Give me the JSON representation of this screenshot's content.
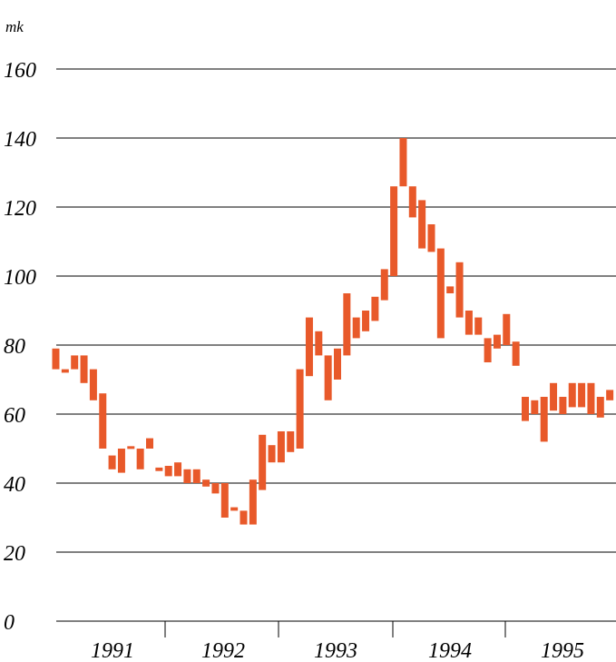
{
  "chart_data": {
    "type": "bar",
    "subtype": "floating-range",
    "unit_label": "mk",
    "ylim": [
      0,
      160
    ],
    "yticks": [
      0,
      20,
      40,
      60,
      80,
      100,
      120,
      140,
      160
    ],
    "x_periods": [
      "1991",
      "1992",
      "1993",
      "1994",
      "1995"
    ],
    "grid": "horizontal",
    "colors": {
      "bar": "#e8592a",
      "grid": "#000000",
      "text": "#000000"
    },
    "series": [
      {
        "ranges": [
          [
            73,
            79
          ],
          [
            72,
            73
          ],
          [
            73,
            77
          ],
          [
            69,
            77
          ],
          [
            64,
            73
          ],
          [
            50,
            66
          ],
          [
            44,
            48
          ],
          [
            43,
            50
          ],
          [
            50,
            50.6
          ],
          [
            44,
            50
          ],
          [
            50,
            53
          ],
          [
            43.5,
            44.5
          ],
          [
            42,
            45
          ],
          [
            42,
            46
          ],
          [
            40,
            44
          ],
          [
            40,
            44
          ],
          [
            39,
            41
          ],
          [
            37,
            40
          ],
          [
            30,
            40
          ],
          [
            32,
            33
          ],
          [
            28,
            32
          ],
          [
            28,
            41
          ],
          [
            38,
            54
          ],
          [
            46,
            51
          ],
          [
            46,
            55
          ],
          [
            49,
            55
          ],
          [
            50,
            73
          ],
          [
            71,
            88
          ],
          [
            77,
            84
          ],
          [
            64,
            77
          ],
          [
            70,
            79
          ],
          [
            77,
            95
          ],
          [
            82,
            88
          ],
          [
            84,
            90
          ],
          [
            87,
            94
          ],
          [
            93,
            102
          ],
          [
            100,
            126
          ],
          [
            126,
            140
          ],
          [
            117,
            126
          ],
          [
            108,
            122
          ],
          [
            107,
            115
          ],
          [
            82,
            108
          ],
          [
            95,
            97
          ],
          [
            88,
            104
          ],
          [
            83,
            90
          ],
          [
            83,
            88
          ],
          [
            75,
            82
          ],
          [
            79,
            83
          ],
          [
            80,
            89
          ],
          [
            74,
            81
          ],
          [
            58,
            65
          ],
          [
            60,
            64
          ],
          [
            52,
            65
          ],
          [
            61,
            69
          ],
          [
            60,
            65
          ],
          [
            62,
            69
          ],
          [
            62,
            69
          ],
          [
            60,
            69
          ],
          [
            59,
            65
          ],
          [
            64,
            67
          ]
        ]
      }
    ]
  }
}
